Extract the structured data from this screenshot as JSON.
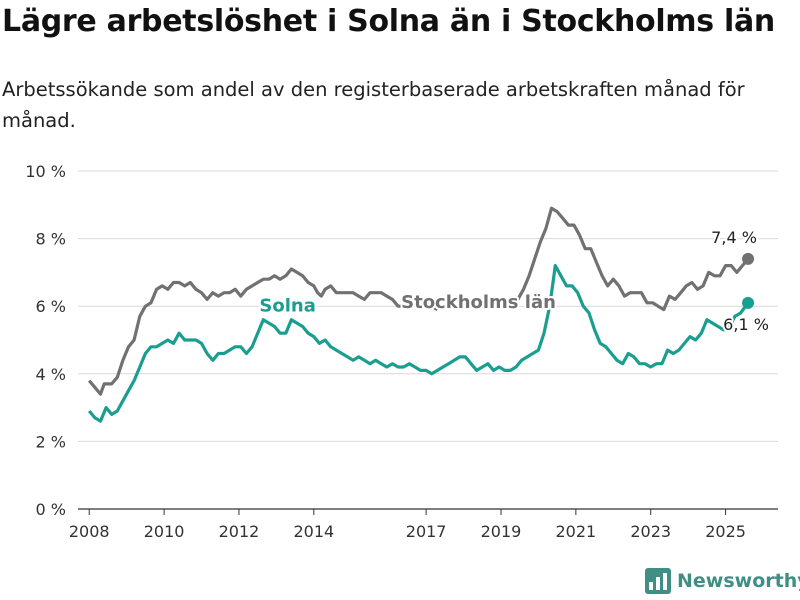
{
  "header": {
    "title": "Lägre arbetslöshet i Solna än i Stockholms län",
    "subtitle": "Arbetssökande som andel av den registerbaserade arbetskraften månad för månad."
  },
  "brand": {
    "name": "Newsworthy"
  },
  "chart_data": {
    "type": "line",
    "ylim": [
      0,
      10
    ],
    "xlim": [
      2007.7,
      2026.4
    ],
    "y_ticks": [
      {
        "value": 0,
        "label": "0 %"
      },
      {
        "value": 2,
        "label": "2 %"
      },
      {
        "value": 4,
        "label": "4 %"
      },
      {
        "value": 6,
        "label": "6 %"
      },
      {
        "value": 8,
        "label": "8 %"
      },
      {
        "value": 10,
        "label": "10 %"
      }
    ],
    "x_ticks": [
      {
        "value": 2008,
        "label": "2008"
      },
      {
        "value": 2010,
        "label": "2010"
      },
      {
        "value": 2012,
        "label": "2012"
      },
      {
        "value": 2014,
        "label": "2014"
      },
      {
        "value": 2017,
        "label": "2017"
      },
      {
        "value": 2019,
        "label": "2019"
      },
      {
        "value": 2021,
        "label": "2021"
      },
      {
        "value": 2023,
        "label": "2023"
      },
      {
        "value": 2025,
        "label": "2025"
      }
    ],
    "grid": true,
    "series": [
      {
        "name": "Stockholms län",
        "color": "#727073",
        "end_label": "7,4 %",
        "points": [
          [
            2008.0,
            3.8
          ],
          [
            2008.15,
            3.6
          ],
          [
            2008.3,
            3.4
          ],
          [
            2008.4,
            3.7
          ],
          [
            2008.6,
            3.7
          ],
          [
            2008.75,
            3.9
          ],
          [
            2008.9,
            4.4
          ],
          [
            2009.05,
            4.8
          ],
          [
            2009.2,
            5.0
          ],
          [
            2009.35,
            5.7
          ],
          [
            2009.5,
            6.0
          ],
          [
            2009.65,
            6.1
          ],
          [
            2009.8,
            6.5
          ],
          [
            2009.95,
            6.6
          ],
          [
            2010.1,
            6.5
          ],
          [
            2010.25,
            6.7
          ],
          [
            2010.4,
            6.7
          ],
          [
            2010.55,
            6.6
          ],
          [
            2010.7,
            6.7
          ],
          [
            2010.85,
            6.5
          ],
          [
            2011.0,
            6.4
          ],
          [
            2011.15,
            6.2
          ],
          [
            2011.3,
            6.4
          ],
          [
            2011.45,
            6.3
          ],
          [
            2011.6,
            6.4
          ],
          [
            2011.75,
            6.4
          ],
          [
            2011.9,
            6.5
          ],
          [
            2012.05,
            6.3
          ],
          [
            2012.2,
            6.5
          ],
          [
            2012.35,
            6.6
          ],
          [
            2012.5,
            6.7
          ],
          [
            2012.65,
            6.8
          ],
          [
            2012.8,
            6.8
          ],
          [
            2012.95,
            6.9
          ],
          [
            2013.1,
            6.8
          ],
          [
            2013.25,
            6.9
          ],
          [
            2013.4,
            7.1
          ],
          [
            2013.55,
            7.0
          ],
          [
            2013.7,
            6.9
          ],
          [
            2013.85,
            6.7
          ],
          [
            2014.0,
            6.6
          ],
          [
            2014.1,
            6.4
          ],
          [
            2014.2,
            6.3
          ],
          [
            2014.3,
            6.5
          ],
          [
            2014.45,
            6.6
          ],
          [
            2014.6,
            6.4
          ],
          [
            2014.75,
            6.4
          ],
          [
            2014.9,
            6.4
          ],
          [
            2015.05,
            6.4
          ],
          [
            2015.2,
            6.3
          ],
          [
            2015.35,
            6.2
          ],
          [
            2015.5,
            6.4
          ],
          [
            2015.65,
            6.4
          ],
          [
            2015.8,
            6.4
          ],
          [
            2015.95,
            6.3
          ],
          [
            2016.1,
            6.2
          ],
          [
            2016.25,
            6.0
          ],
          [
            2016.4,
            6.0
          ],
          [
            2016.55,
            6.1
          ],
          [
            2016.7,
            6.1
          ],
          [
            2016.85,
            6.0
          ],
          [
            2017.0,
            6.1
          ],
          [
            2017.15,
            6.0
          ],
          [
            2017.3,
            5.9
          ]
        ],
        "points_right": [
          [
            2019.2,
            6.0
          ],
          [
            2019.4,
            6.1
          ],
          [
            2019.6,
            6.5
          ],
          [
            2019.75,
            6.9
          ],
          [
            2019.9,
            7.4
          ],
          [
            2020.05,
            7.9
          ],
          [
            2020.2,
            8.3
          ],
          [
            2020.35,
            8.9
          ],
          [
            2020.5,
            8.8
          ],
          [
            2020.65,
            8.6
          ],
          [
            2020.8,
            8.4
          ],
          [
            2020.95,
            8.4
          ],
          [
            2021.1,
            8.1
          ],
          [
            2021.25,
            7.7
          ],
          [
            2021.4,
            7.7
          ],
          [
            2021.55,
            7.3
          ],
          [
            2021.7,
            6.9
          ],
          [
            2021.85,
            6.6
          ],
          [
            2022.0,
            6.8
          ],
          [
            2022.15,
            6.6
          ],
          [
            2022.3,
            6.3
          ],
          [
            2022.45,
            6.4
          ],
          [
            2022.6,
            6.4
          ],
          [
            2022.75,
            6.4
          ],
          [
            2022.9,
            6.1
          ],
          [
            2023.05,
            6.1
          ],
          [
            2023.2,
            6.0
          ],
          [
            2023.35,
            5.9
          ],
          [
            2023.5,
            6.3
          ],
          [
            2023.65,
            6.2
          ],
          [
            2023.8,
            6.4
          ],
          [
            2023.95,
            6.6
          ],
          [
            2024.1,
            6.7
          ],
          [
            2024.25,
            6.5
          ],
          [
            2024.4,
            6.6
          ],
          [
            2024.55,
            7.0
          ],
          [
            2024.7,
            6.9
          ],
          [
            2024.85,
            6.9
          ],
          [
            2025.0,
            7.2
          ],
          [
            2025.15,
            7.2
          ],
          [
            2025.3,
            7.0
          ],
          [
            2025.45,
            7.2
          ],
          [
            2025.6,
            7.4
          ]
        ]
      },
      {
        "name": "Solna",
        "color": "#1a9e90",
        "end_label": "6,1 %",
        "points": [
          [
            2008.0,
            2.9
          ],
          [
            2008.15,
            2.7
          ],
          [
            2008.3,
            2.6
          ],
          [
            2008.45,
            3.0
          ],
          [
            2008.6,
            2.8
          ],
          [
            2008.75,
            2.9
          ],
          [
            2008.9,
            3.2
          ],
          [
            2009.05,
            3.5
          ],
          [
            2009.2,
            3.8
          ],
          [
            2009.35,
            4.2
          ],
          [
            2009.5,
            4.6
          ],
          [
            2009.65,
            4.8
          ],
          [
            2009.8,
            4.8
          ],
          [
            2009.95,
            4.9
          ],
          [
            2010.1,
            5.0
          ],
          [
            2010.25,
            4.9
          ],
          [
            2010.4,
            5.2
          ],
          [
            2010.55,
            5.0
          ],
          [
            2010.7,
            5.0
          ],
          [
            2010.85,
            5.0
          ],
          [
            2011.0,
            4.9
          ],
          [
            2011.15,
            4.6
          ],
          [
            2011.3,
            4.4
          ],
          [
            2011.45,
            4.6
          ],
          [
            2011.6,
            4.6
          ],
          [
            2011.75,
            4.7
          ],
          [
            2011.9,
            4.8
          ],
          [
            2012.05,
            4.8
          ],
          [
            2012.2,
            4.6
          ],
          [
            2012.35,
            4.8
          ],
          [
            2012.5,
            5.2
          ],
          [
            2012.65,
            5.6
          ],
          [
            2012.8,
            5.5
          ],
          [
            2012.95,
            5.4
          ],
          [
            2013.1,
            5.2
          ],
          [
            2013.25,
            5.2
          ],
          [
            2013.4,
            5.6
          ],
          [
            2013.55,
            5.5
          ],
          [
            2013.7,
            5.4
          ],
          [
            2013.85,
            5.2
          ],
          [
            2014.0,
            5.1
          ],
          [
            2014.15,
            4.9
          ],
          [
            2014.3,
            5.0
          ],
          [
            2014.45,
            4.8
          ],
          [
            2014.6,
            4.7
          ],
          [
            2014.75,
            4.6
          ],
          [
            2014.9,
            4.5
          ],
          [
            2015.05,
            4.4
          ],
          [
            2015.2,
            4.5
          ],
          [
            2015.35,
            4.4
          ],
          [
            2015.5,
            4.3
          ],
          [
            2015.65,
            4.4
          ],
          [
            2015.8,
            4.3
          ],
          [
            2015.95,
            4.2
          ],
          [
            2016.1,
            4.3
          ],
          [
            2016.25,
            4.2
          ],
          [
            2016.4,
            4.2
          ],
          [
            2016.55,
            4.3
          ],
          [
            2016.7,
            4.2
          ],
          [
            2016.85,
            4.1
          ],
          [
            2017.0,
            4.1
          ],
          [
            2017.15,
            4.0
          ],
          [
            2017.3,
            4.1
          ],
          [
            2017.45,
            4.2
          ],
          [
            2017.6,
            4.3
          ],
          [
            2017.75,
            4.4
          ],
          [
            2017.9,
            4.5
          ],
          [
            2018.05,
            4.5
          ],
          [
            2018.2,
            4.3
          ],
          [
            2018.35,
            4.1
          ],
          [
            2018.5,
            4.2
          ],
          [
            2018.65,
            4.3
          ],
          [
            2018.8,
            4.1
          ],
          [
            2018.95,
            4.2
          ],
          [
            2019.1,
            4.1
          ],
          [
            2019.25,
            4.1
          ],
          [
            2019.4,
            4.2
          ],
          [
            2019.55,
            4.4
          ],
          [
            2019.7,
            4.5
          ],
          [
            2019.85,
            4.6
          ],
          [
            2020.0,
            4.7
          ],
          [
            2020.15,
            5.2
          ],
          [
            2020.3,
            6.0
          ],
          [
            2020.45,
            7.2
          ],
          [
            2020.6,
            6.9
          ],
          [
            2020.75,
            6.6
          ],
          [
            2020.9,
            6.6
          ],
          [
            2021.05,
            6.4
          ],
          [
            2021.2,
            6.0
          ],
          [
            2021.35,
            5.8
          ],
          [
            2021.5,
            5.3
          ],
          [
            2021.65,
            4.9
          ],
          [
            2021.8,
            4.8
          ],
          [
            2021.95,
            4.6
          ],
          [
            2022.1,
            4.4
          ],
          [
            2022.25,
            4.3
          ],
          [
            2022.4,
            4.6
          ],
          [
            2022.55,
            4.5
          ],
          [
            2022.7,
            4.3
          ],
          [
            2022.85,
            4.3
          ],
          [
            2023.0,
            4.2
          ],
          [
            2023.15,
            4.3
          ],
          [
            2023.3,
            4.3
          ],
          [
            2023.45,
            4.7
          ],
          [
            2023.6,
            4.6
          ],
          [
            2023.75,
            4.7
          ],
          [
            2023.9,
            4.9
          ],
          [
            2024.05,
            5.1
          ],
          [
            2024.2,
            5.0
          ],
          [
            2024.35,
            5.2
          ],
          [
            2024.5,
            5.6
          ],
          [
            2024.65,
            5.5
          ],
          [
            2024.8,
            5.4
          ],
          [
            2024.95,
            5.3
          ],
          [
            2025.1,
            5.4
          ],
          [
            2025.25,
            5.7
          ],
          [
            2025.4,
            5.8
          ],
          [
            2025.6,
            6.1
          ]
        ]
      }
    ]
  }
}
